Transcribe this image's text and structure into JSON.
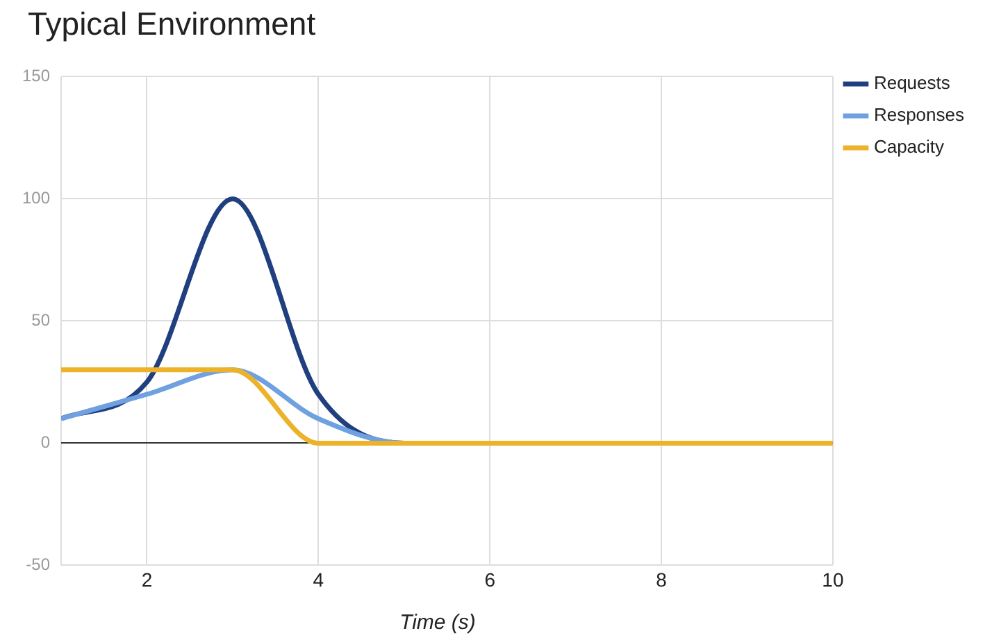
{
  "chart_data": {
    "type": "line",
    "title": "Typical Environment",
    "xlabel": "Time (s)",
    "x": [
      1,
      2,
      3,
      4,
      5,
      6,
      7,
      8,
      9,
      10
    ],
    "series": [
      {
        "name": "Requests",
        "color": "#203f7f",
        "values": [
          10,
          25,
          100,
          20,
          0,
          0,
          null,
          null,
          null,
          null
        ]
      },
      {
        "name": "Responses",
        "color": "#6fa0e0",
        "values": [
          10,
          20,
          30,
          10,
          0,
          0,
          null,
          null,
          null,
          null
        ]
      },
      {
        "name": "Capacity",
        "color": "#ebb22a",
        "values": [
          30,
          30,
          30,
          0,
          0,
          0,
          0,
          0,
          0,
          0
        ]
      }
    ],
    "xlim": [
      1,
      10
    ],
    "xticks": [
      {
        "value": 1,
        "label": null
      },
      2,
      4,
      6,
      8,
      10
    ],
    "ylim": [
      -50,
      150
    ],
    "yticks": [
      -50,
      0,
      50,
      100,
      150
    ],
    "grid": true,
    "legend": "top right",
    "marker": "none",
    "line_style": "solid"
  }
}
